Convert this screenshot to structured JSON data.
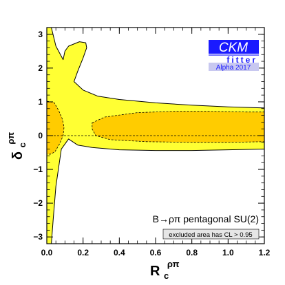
{
  "chart_data": {
    "type": "area",
    "title": "",
    "xlabel_base": "R",
    "xlabel_sub": "c",
    "xlabel_sup": "ρπ",
    "ylabel_base": "δ",
    "ylabel_sub": "c",
    "ylabel_sup": "ρπ",
    "xlim": [
      0.0,
      1.2
    ],
    "ylim": [
      -3.2,
      3.2
    ],
    "xticks": [
      "0.0",
      "0.2",
      "0.4",
      "0.6",
      "0.8",
      "1.0",
      "1.2"
    ],
    "xtick_values": [
      0.0,
      0.2,
      0.4,
      0.6,
      0.8,
      1.0,
      1.2
    ],
    "yticks": [
      "−3",
      "−2",
      "−1",
      "0",
      "1",
      "2",
      "3"
    ],
    "ytick_values": [
      -3,
      -2,
      -1,
      0,
      1,
      2,
      3
    ],
    "grid": false,
    "regions": [
      {
        "level": "outer",
        "color": "#ffff33",
        "points": [
          [
            0.025,
            3.2
          ],
          [
            0.05,
            2.65
          ],
          [
            0.09,
            2.25
          ],
          [
            0.1,
            2.5
          ],
          [
            0.12,
            2.65
          ],
          [
            0.18,
            2.78
          ],
          [
            0.215,
            2.75
          ],
          [
            0.22,
            2.6
          ],
          [
            0.2,
            2.3
          ],
          [
            0.17,
            1.9
          ],
          [
            0.15,
            1.6
          ],
          [
            0.2,
            1.35
          ],
          [
            0.28,
            1.17
          ],
          [
            0.4,
            1.07
          ],
          [
            0.6,
            0.97
          ],
          [
            0.8,
            0.9
          ],
          [
            1.0,
            0.85
          ],
          [
            1.2,
            0.82
          ],
          [
            1.2,
            -0.4
          ],
          [
            1.0,
            -0.42
          ],
          [
            0.8,
            -0.44
          ],
          [
            0.6,
            -0.44
          ],
          [
            0.4,
            -0.42
          ],
          [
            0.25,
            -0.35
          ],
          [
            0.17,
            -0.28
          ],
          [
            0.12,
            -0.1
          ],
          [
            0.08,
            -0.4
          ],
          [
            0.05,
            -1.5
          ],
          [
            0.035,
            -2.5
          ],
          [
            0.025,
            -3.2
          ],
          [
            0.0,
            -3.2
          ],
          [
            0.0,
            3.2
          ]
        ]
      },
      {
        "level": "inner-right",
        "color": "#ffcc00",
        "points": [
          [
            0.25,
            0.38
          ],
          [
            0.32,
            0.55
          ],
          [
            0.5,
            0.68
          ],
          [
            0.7,
            0.72
          ],
          [
            0.9,
            0.72
          ],
          [
            1.1,
            0.7
          ],
          [
            1.2,
            0.7
          ],
          [
            1.2,
            -0.18
          ],
          [
            1.0,
            -0.2
          ],
          [
            0.8,
            -0.2
          ],
          [
            0.55,
            -0.18
          ],
          [
            0.35,
            -0.12
          ],
          [
            0.27,
            0.0
          ],
          [
            0.25,
            0.2
          ]
        ]
      },
      {
        "level": "inner-left",
        "color": "#ffcc00",
        "points": [
          [
            0.0,
            1.02
          ],
          [
            0.04,
            0.98
          ],
          [
            0.065,
            0.75
          ],
          [
            0.085,
            0.5
          ],
          [
            0.095,
            0.25
          ],
          [
            0.09,
            0.0
          ],
          [
            0.07,
            -0.25
          ],
          [
            0.045,
            -0.48
          ],
          [
            0.02,
            -0.55
          ],
          [
            0.0,
            -0.55
          ]
        ]
      }
    ],
    "reference_line": {
      "y": 0,
      "style": "dashed"
    },
    "annotation": "B→ρπ pentagonal SU(2)",
    "legend_note": "excluded area has CL > 0.95",
    "logo": {
      "main": "CKM",
      "sub": "fitter",
      "tag": "Alpha 2017"
    }
  },
  "colors": {
    "outer_region": "#ffff33",
    "inner_region": "#ffcc00",
    "logo_blue": "#1a1aff",
    "logo_tag_bg": "#c8c8f0"
  }
}
